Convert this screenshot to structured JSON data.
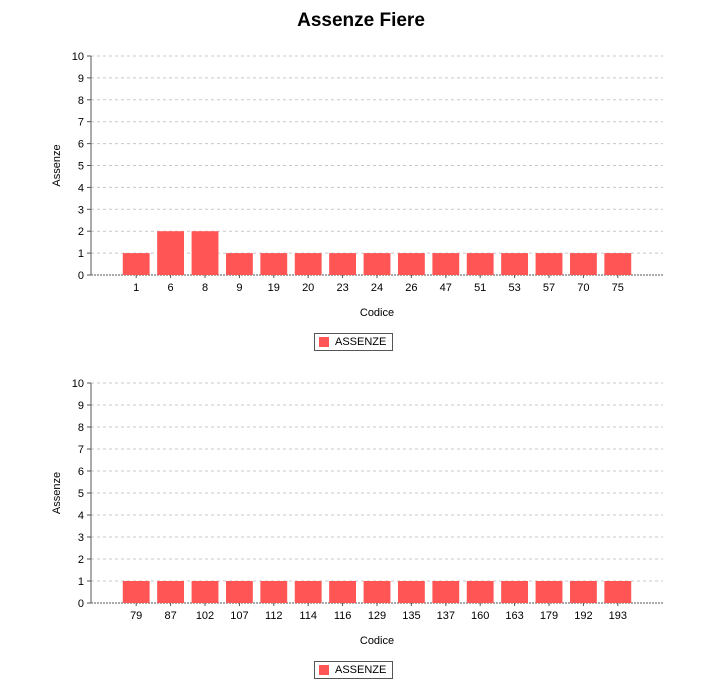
{
  "title": "Assenze Fiere",
  "colors": {
    "bar": "#FF5555",
    "grid": "#C8C8C8",
    "axis": "#555555"
  },
  "chart_data": [
    {
      "type": "bar",
      "categories": [
        "1",
        "6",
        "8",
        "9",
        "19",
        "20",
        "23",
        "24",
        "26",
        "47",
        "51",
        "53",
        "57",
        "70",
        "75"
      ],
      "series": [
        {
          "name": "ASSENZE",
          "values": [
            1,
            2,
            2,
            1,
            1,
            1,
            1,
            1,
            1,
            1,
            1,
            1,
            1,
            1,
            1
          ]
        }
      ],
      "xlabel": "Codice",
      "ylabel": "Assenze",
      "ylim": [
        0,
        10
      ],
      "yticks": [
        0,
        1,
        2,
        3,
        4,
        5,
        6,
        7,
        8,
        9,
        10
      ],
      "grid": true,
      "legend": "bottom-center"
    },
    {
      "type": "bar",
      "categories": [
        "79",
        "87",
        "102",
        "107",
        "112",
        "114",
        "116",
        "129",
        "135",
        "137",
        "160",
        "163",
        "179",
        "192",
        "193"
      ],
      "series": [
        {
          "name": "ASSENZE",
          "values": [
            1,
            1,
            1,
            1,
            1,
            1,
            1,
            1,
            1,
            1,
            1,
            1,
            1,
            1,
            1
          ]
        }
      ],
      "xlabel": "Codice",
      "ylabel": "Assenze",
      "ylim": [
        0,
        10
      ],
      "yticks": [
        0,
        1,
        2,
        3,
        4,
        5,
        6,
        7,
        8,
        9,
        10
      ],
      "grid": true,
      "legend": "bottom-center"
    }
  ]
}
